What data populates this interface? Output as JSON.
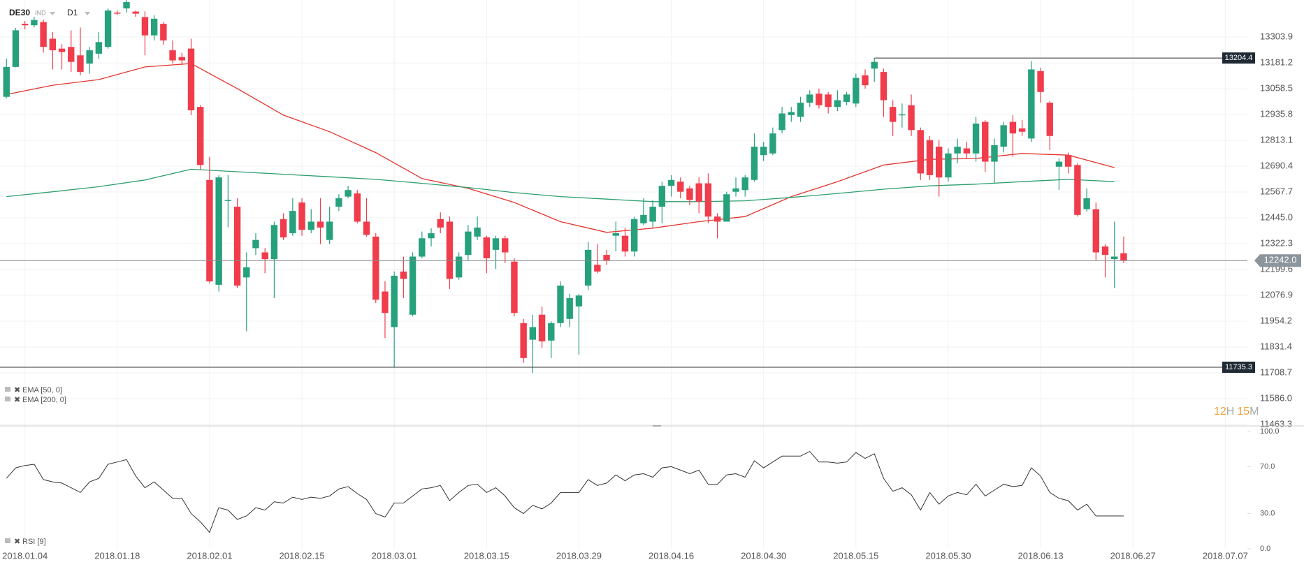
{
  "chart_data": {
    "type": "candlestick",
    "title": "DE30",
    "instrument_type": "IND",
    "timeframe": "D1",
    "up_color": "#26a17c",
    "down_color": "#f03c4b",
    "open": [
      13020,
      13162,
      13367,
      13360,
      13375,
      13296,
      13249,
      13257,
      13217,
      13178,
      13225,
      13257,
      13420,
      13440,
      13425,
      13399,
      13312,
      13367,
      13241,
      13209,
      13249,
      12972,
      12625,
      12127,
      12525,
      12498,
      12162,
      12301,
      12281,
      12249,
      12439,
      12372,
      12518,
      12388,
      12427,
      12340,
      12498,
      12546,
      12561,
      12427,
      12356,
      12095,
      11926,
      12190,
      11985,
      12261,
      12348,
      12439,
      12427,
      12162,
      12269,
      12356,
      12352,
      12293,
      12348,
      12237,
      11945,
      11866,
      11985,
      11862,
      11945,
      11965,
      12024,
      12123,
      12222,
      12269,
      12360,
      12360,
      12285,
      12419,
      12427,
      12498,
      12597,
      12617,
      12585,
      12609,
      12609,
      12451,
      12427,
      12569,
      12577,
      12625,
      12743,
      12751,
      12862,
      12933,
      12925,
      12992,
      13035,
      13031,
      12972,
      12996,
      12988,
      13122,
      13154,
      13138,
      12972,
      12933,
      12980,
      12862,
      12814,
      12783,
      12637,
      12751,
      12775,
      12751,
      12901,
      12712,
      12783,
      12901,
      12870,
      12822,
      13142,
      12992,
      12688,
      12743,
      12696,
      12486,
      12486,
      12309,
      12249,
      12277
    ],
    "high": [
      13201,
      13347,
      13380,
      13400,
      13387,
      13328,
      13270,
      13336,
      13349,
      13257,
      13328,
      13440,
      13430,
      13500,
      13430,
      13426,
      13407,
      13375,
      13288,
      13229,
      13296,
      12980,
      12735,
      12648,
      12649,
      12538,
      12281,
      12372,
      12301,
      12427,
      12467,
      12538,
      12538,
      12486,
      12538,
      12498,
      12557,
      12597,
      12577,
      12538,
      12372,
      12143,
      12190,
      12261,
      12281,
      12380,
      12395,
      12471,
      12451,
      12281,
      12411,
      12451,
      12360,
      12360,
      12360,
      12253,
      11965,
      11985,
      12024,
      11953,
      12143,
      12084,
      12084,
      12332,
      12320,
      12293,
      12427,
      12399,
      12451,
      12538,
      12530,
      12617,
      12648,
      12637,
      12597,
      12637,
      12656,
      12467,
      12569,
      12637,
      12648,
      12846,
      12806,
      12874,
      12972,
      12972,
      13020,
      13051,
      13059,
      13043,
      13051,
      13043,
      13130,
      13150,
      13204.4,
      13154,
      13004,
      12988,
      13031,
      12874,
      12834,
      12814,
      12775,
      12822,
      12806,
      12925,
      12909,
      12822,
      12901,
      12933,
      12909,
      13190,
      13158,
      13000,
      12727,
      12755,
      12704,
      12585,
      12518,
      12320,
      12427,
      12356
    ],
    "low": [
      13012,
      13160,
      13340,
      13350,
      13230,
      13150,
      13150,
      13138,
      13122,
      13130,
      13201,
      13249,
      13410,
      13420,
      13400,
      13217,
      13288,
      13268,
      13178,
      13170,
      12933,
      12676,
      12135,
      12095,
      12400,
      12111,
      11906,
      12269,
      12182,
      12064,
      12340,
      12360,
      12360,
      12372,
      12320,
      12320,
      12478,
      12538,
      12419,
      12356,
      12040,
      11874,
      11735.3,
      12064,
      11977,
      12253,
      12309,
      12372,
      12107,
      12151,
      12241,
      12340,
      12182,
      12202,
      12230,
      11977,
      11756,
      11708,
      11827,
      11779,
      11926,
      11926,
      11795,
      12103,
      12182,
      12222,
      12285,
      12261,
      12261,
      12411,
      12399,
      12419,
      12546,
      12538,
      12506,
      12467,
      12419,
      12348,
      12439,
      12546,
      12546,
      12617,
      12715,
      12743,
      12846,
      12901,
      12901,
      12972,
      12964,
      12941,
      12952,
      12980,
      12972,
      13059,
      13091,
      12925,
      12834,
      12874,
      12834,
      12625,
      12625,
      12546,
      12617,
      12704,
      12727,
      12712,
      12664,
      12609,
      12755,
      12735,
      12834,
      12806,
      12992,
      12767,
      12577,
      12656,
      12451,
      12475,
      12241,
      12162,
      12111,
      12230
    ],
    "close": [
      13162,
      13336,
      13360,
      13385,
      13257,
      13241,
      13233,
      13186,
      13138,
      13241,
      13280,
      13430,
      13418,
      13470,
      13415,
      13312,
      13391,
      13288,
      13193,
      13193,
      12956,
      12696,
      12143,
      12637,
      12530,
      12123,
      12210,
      12340,
      12249,
      12411,
      12352,
      12478,
      12388,
      12427,
      12399,
      12427,
      12538,
      12577,
      12427,
      12364,
      12056,
      11993,
      12170,
      12155,
      12261,
      12348,
      12372,
      12399,
      12155,
      12261,
      12380,
      12399,
      12253,
      12348,
      12281,
      11993,
      11779,
      11926,
      11858,
      11945,
      12123,
      12064,
      12076,
      12293,
      12190,
      12241,
      12372,
      12285,
      12439,
      12459,
      12498,
      12597,
      12625,
      12569,
      12530,
      12522,
      12451,
      12427,
      12557,
      12585,
      12637,
      12783,
      12783,
      12846,
      12941,
      12948,
      12992,
      13031,
      12980,
      12972,
      13004,
      13031,
      13110,
      13075,
      13186,
      13004,
      12901,
      12937,
      12862,
      12656,
      12648,
      12637,
      12751,
      12783,
      12751,
      12893,
      12712,
      12790,
      12885,
      12846,
      12854,
      13150,
      13043,
      12834,
      12712,
      12688,
      12459,
      12538,
      12281,
      12269,
      12261,
      12242
    ],
    "xlim": [
      -0.7,
      134.4
    ],
    "xticks": [
      {
        "value": 2,
        "label": "2018.01.04"
      },
      {
        "value": 12,
        "label": "2018.01.18"
      },
      {
        "value": 22,
        "label": "2018.02.01"
      },
      {
        "value": 32,
        "label": "2018.02.15"
      },
      {
        "value": 42,
        "label": "2018.03.01"
      },
      {
        "value": 52,
        "label": "2018.03.15"
      },
      {
        "value": 62,
        "label": "2018.03.29"
      },
      {
        "value": 72,
        "label": "2018.04.16"
      },
      {
        "value": 82,
        "label": "2018.04.30"
      },
      {
        "value": 92,
        "label": "2018.05.15"
      },
      {
        "value": 102,
        "label": "2018.05.30"
      },
      {
        "value": 112,
        "label": "2018.06.13"
      },
      {
        "value": 122,
        "label": "2018.06.27"
      },
      {
        "value": 132,
        "label": "2018.07.07"
      }
    ],
    "ylim": [
      11460,
      13480
    ],
    "yticks": [
      13303.9,
      13181.2,
      13058.5,
      12935.8,
      12813.1,
      12690.4,
      12567.7,
      {
        "value": 12445,
        "label": "12445.0"
      },
      12322.3,
      12199.6,
      12076.9,
      11954.2,
      11831.4,
      11708.7,
      {
        "value": 11586,
        "label": "11586.0"
      },
      11463.3
    ],
    "grid": true,
    "indicators": [
      {
        "name": "EMA [50, 0]",
        "color": "#e3342f",
        "x": [
          0,
          5,
          10,
          15,
          20,
          25,
          30,
          35,
          40,
          45,
          50,
          55,
          60,
          65,
          70,
          75,
          80,
          85,
          90,
          95,
          100,
          105,
          110,
          115,
          120
        ],
        "values": [
          13031,
          13075,
          13102,
          13162,
          13178,
          13059,
          12933,
          12854,
          12755,
          12632,
          12585,
          12518,
          12427,
          12376,
          12396,
          12427,
          12451,
          12546,
          12617,
          12696,
          12723,
          12727,
          12751,
          12743,
          12684
        ]
      },
      {
        "name": "EMA [200, 0]",
        "color": "#2e9e6e",
        "x": [
          0,
          5,
          10,
          15,
          20,
          25,
          30,
          35,
          40,
          45,
          50,
          55,
          60,
          65,
          70,
          75,
          80,
          85,
          90,
          95,
          100,
          105,
          110,
          115,
          120
        ],
        "values": [
          12546,
          12569,
          12593,
          12625,
          12676,
          12664,
          12652,
          12640,
          12628,
          12609,
          12589,
          12565,
          12546,
          12534,
          12522,
          12522,
          12526,
          12542,
          12561,
          12581,
          12597,
          12605,
          12617,
          12628,
          12617
        ]
      }
    ],
    "levels": [
      {
        "value": 13204.4,
        "label": "13204.4"
      },
      {
        "value": 11735.3,
        "label": "11735.3"
      },
      {
        "value": 12242,
        "label": "12242.0",
        "current": true
      }
    ],
    "countdown": [
      "12",
      "H",
      "15",
      "M"
    ],
    "rsi": {
      "name": "RSI [9]",
      "color": "#333333",
      "values": [
        60,
        69,
        71,
        72,
        59,
        57,
        56,
        52,
        48,
        57,
        60,
        72,
        74,
        76,
        62,
        52,
        57,
        50,
        43,
        43,
        30,
        23,
        14,
        35,
        33,
        25,
        28,
        35,
        33,
        40,
        39,
        44,
        42,
        44,
        43,
        45,
        51,
        53,
        47,
        42,
        30,
        27,
        39,
        39,
        45,
        51,
        52,
        54,
        41,
        48,
        54,
        55,
        48,
        52,
        45,
        35,
        30,
        37,
        34,
        39,
        48,
        48,
        48,
        59,
        54,
        56,
        63,
        58,
        63,
        64,
        61,
        69,
        70,
        67,
        64,
        67,
        55,
        55,
        63,
        64,
        61,
        75,
        69,
        74,
        79,
        79,
        79,
        83,
        74,
        74,
        73,
        74,
        82,
        77,
        81,
        60,
        49,
        52,
        46,
        33,
        48,
        38,
        45,
        48,
        46,
        55,
        45,
        50,
        55,
        53,
        54,
        69,
        62,
        48,
        43,
        41,
        33,
        38,
        28,
        28,
        28,
        28
      ],
      "ylim": [
        0,
        100
      ],
      "yticks": [
        {
          "value": 100,
          "label": "100.0"
        },
        {
          "value": 70,
          "label": "70.0"
        },
        {
          "value": 30,
          "label": "30.0"
        },
        {
          "value": 0,
          "label": "0.0"
        }
      ]
    }
  }
}
